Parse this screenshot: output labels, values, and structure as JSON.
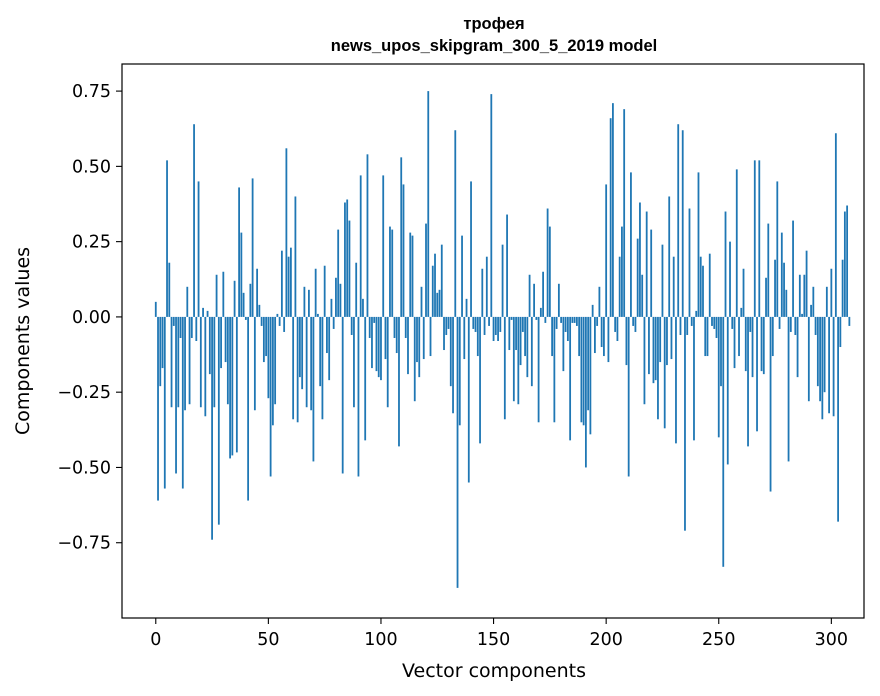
{
  "chart_data": {
    "type": "bar",
    "title_line1": "трофея",
    "title_line2": "news_upos_skipgram_300_5_2019 model",
    "xlabel": "Vector components",
    "ylabel": "Components values",
    "xlim": [
      -15,
      314.5
    ],
    "ylim": [
      -1.0,
      0.84
    ],
    "xticks": [
      0,
      50,
      100,
      150,
      200,
      250,
      300
    ],
    "xtick_labels": [
      "0",
      "50",
      "100",
      "150",
      "200",
      "250",
      "300"
    ],
    "yticks": [
      -0.75,
      -0.5,
      -0.25,
      0.0,
      0.25,
      0.5,
      0.75
    ],
    "ytick_labels": [
      "−0.75",
      "−0.50",
      "−0.25",
      "0.00",
      "0.25",
      "0.50",
      "0.75"
    ],
    "bar_color": "#1f77b4",
    "values": [
      0.05,
      -0.61,
      -0.23,
      -0.17,
      -0.57,
      0.52,
      0.18,
      -0.3,
      -0.03,
      -0.52,
      -0.3,
      -0.07,
      -0.57,
      -0.31,
      0.1,
      -0.29,
      -0.07,
      0.64,
      -0.08,
      0.45,
      -0.3,
      0.03,
      -0.33,
      0.02,
      -0.19,
      -0.74,
      -0.3,
      0.14,
      -0.69,
      -0.17,
      0.15,
      -0.15,
      -0.29,
      -0.47,
      -0.46,
      0.12,
      -0.45,
      0.43,
      0.28,
      0.08,
      -0.01,
      -0.61,
      0.11,
      0.46,
      -0.31,
      0.16,
      0.04,
      -0.03,
      -0.15,
      -0.13,
      -0.27,
      -0.53,
      -0.36,
      -0.29,
      0.01,
      -0.03,
      0.22,
      -0.05,
      0.56,
      0.2,
      0.23,
      -0.34,
      0.4,
      -0.35,
      -0.2,
      -0.24,
      0.1,
      -0.3,
      0.09,
      -0.31,
      -0.48,
      0.16,
      0.01,
      -0.23,
      -0.34,
      0.17,
      -0.12,
      -0.21,
      0.06,
      -0.04,
      0.13,
      0.29,
      0.11,
      -0.52,
      0.38,
      0.39,
      0.32,
      -0.06,
      -0.3,
      0.18,
      -0.53,
      0.47,
      0.06,
      -0.41,
      0.54,
      -0.07,
      -0.17,
      -0.02,
      -0.18,
      -0.2,
      -0.21,
      0.47,
      -0.14,
      -0.3,
      0.3,
      0.29,
      -0.07,
      -0.12,
      -0.43,
      0.53,
      0.44,
      -0.07,
      -0.19,
      0.28,
      0.27,
      -0.28,
      -0.15,
      -0.2,
      0.1,
      -0.14,
      0.31,
      0.75,
      -0.13,
      0.17,
      0.21,
      0.08,
      0.09,
      0.24,
      -0.11,
      -0.06,
      -0.04,
      -0.23,
      -0.32,
      0.62,
      -0.9,
      -0.36,
      0.27,
      -0.14,
      0.06,
      -0.55,
      0.45,
      -0.04,
      -0.05,
      -0.13,
      -0.42,
      0.16,
      -0.06,
      0.2,
      -0.03,
      0.74,
      -0.08,
      -0.06,
      -0.08,
      -0.05,
      0.24,
      -0.34,
      0.34,
      -0.11,
      -0.01,
      -0.28,
      -0.11,
      -0.29,
      -0.16,
      -0.05,
      -0.13,
      -0.2,
      0.14,
      -0.23,
      0.11,
      -0.01,
      -0.35,
      0.03,
      0.15,
      -0.02,
      0.36,
      0.3,
      -0.13,
      -0.35,
      -0.04,
      0.11,
      -0.02,
      -0.18,
      -0.05,
      -0.08,
      -0.41,
      -0.02,
      -0.02,
      -0.03,
      -0.13,
      -0.35,
      -0.36,
      -0.5,
      -0.31,
      -0.39,
      0.04,
      -0.12,
      -0.03,
      0.1,
      -0.1,
      -0.13,
      0.44,
      -0.15,
      0.66,
      0.71,
      -0.05,
      -0.08,
      0.2,
      0.3,
      0.69,
      -0.16,
      -0.53,
      0.48,
      -0.03,
      -0.05,
      0.26,
      0.38,
      0.14,
      -0.29,
      0.35,
      -0.19,
      0.29,
      -0.22,
      -0.21,
      -0.34,
      -0.15,
      0.24,
      -0.37,
      -0.16,
      0.4,
      -0.14,
      0.2,
      -0.42,
      0.64,
      -0.06,
      0.62,
      -0.71,
      -0.06,
      0.36,
      -0.03,
      -0.41,
      0.02,
      0.48,
      0.2,
      0.17,
      -0.13,
      -0.13,
      0.21,
      -0.03,
      -0.04,
      -0.07,
      -0.4,
      -0.23,
      -0.83,
      0.35,
      -0.49,
      0.25,
      -0.04,
      -0.17,
      0.49,
      -0.13,
      0.03,
      0.16,
      -0.18,
      -0.43,
      -0.05,
      -0.2,
      0.52,
      -0.38,
      0.52,
      -0.18,
      -0.19,
      0.13,
      0.31,
      -0.58,
      -0.13,
      0.19,
      0.45,
      -0.04,
      0.28,
      0.18,
      0.09,
      -0.48,
      -0.05,
      0.32,
      -0.06,
      -0.2,
      0.14,
      0.01,
      0.14,
      0.22,
      -0.28,
      0.04,
      0.1,
      -0.06,
      -0.23,
      -0.28,
      -0.34,
      -0.25,
      0.1,
      -0.32,
      0.16,
      -0.33,
      0.61,
      -0.68,
      -0.1,
      0.19,
      0.35,
      0.37,
      -0.03
    ]
  }
}
